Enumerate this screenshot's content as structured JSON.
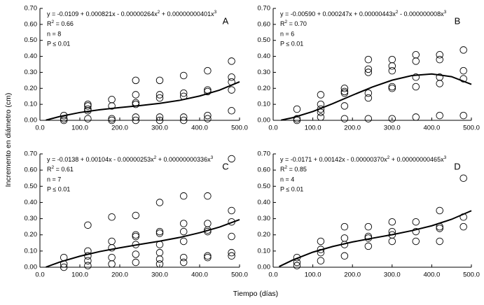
{
  "y_axis_label": "Incremento en diámetro (cm)",
  "x_axis_label": "Tiempo (días)",
  "chart_data": [
    {
      "type": "scatter",
      "letter": "A",
      "color": "#000000",
      "equation": [
        "y = -0.0109 + 0.000821x - 0.00000264x",
        "2",
        " + 0.00000000401x",
        "3"
      ],
      "r2": [
        "R",
        "2",
        " = 0.66"
      ],
      "n": "n = 8",
      "p": "P ≤ 0.01",
      "xlim": [
        0,
        500
      ],
      "ylim": [
        0,
        0.7
      ],
      "xticks": [
        {
          "value": 0,
          "label": "0.0"
        },
        {
          "value": 100,
          "label": "100.0"
        },
        {
          "value": 200,
          "label": "200.0"
        },
        {
          "value": 300,
          "label": "300.0"
        },
        {
          "value": 400,
          "label": "400.0"
        },
        {
          "value": 500,
          "label": "500.0"
        }
      ],
      "yticks": [
        {
          "value": 0,
          "label": "0.00"
        },
        {
          "value": 0.1,
          "label": "0.10"
        },
        {
          "value": 0.2,
          "label": "0.20"
        },
        {
          "value": 0.3,
          "label": "0.30"
        },
        {
          "value": 0.4,
          "label": "0.40"
        },
        {
          "value": 0.5,
          "label": "0.50"
        },
        {
          "value": 0.6,
          "label": "0.60"
        },
        {
          "value": 0.7,
          "label": "0.70"
        }
      ],
      "points": {
        "x": [
          60,
          60,
          60,
          120,
          120,
          120,
          120,
          120,
          180,
          180,
          180,
          180,
          240,
          240,
          240,
          240,
          240,
          240,
          300,
          300,
          300,
          300,
          300,
          360,
          360,
          360,
          360,
          360,
          420,
          420,
          420,
          420,
          420,
          480,
          480,
          480,
          480,
          480
        ],
        "values": [
          0.03,
          0.01,
          0.0,
          0.1,
          0.09,
          0.07,
          0.06,
          0.01,
          0.13,
          0.09,
          0.01,
          0.0,
          0.25,
          0.16,
          0.11,
          0.1,
          0.02,
          0.0,
          0.25,
          0.16,
          0.14,
          0.02,
          0.0,
          0.28,
          0.17,
          0.15,
          0.02,
          0.0,
          0.31,
          0.19,
          0.18,
          0.03,
          0.01,
          0.37,
          0.27,
          0.24,
          0.19,
          0.06
        ]
      },
      "fit": {
        "x": [
          15,
          50,
          100,
          150,
          200,
          250,
          300,
          350,
          400,
          450,
          500
        ],
        "values": [
          0.001,
          0.024,
          0.049,
          0.066,
          0.08,
          0.092,
          0.106,
          0.125,
          0.152,
          0.189,
          0.241
        ]
      }
    },
    {
      "type": "scatter",
      "letter": "B",
      "color": "#000000",
      "equation": [
        "y = -0.00590 + 0.000247x + 0.00000443x",
        "2",
        " - 0.000000008x",
        "3"
      ],
      "r2": [
        "R",
        "2",
        " = 0.70"
      ],
      "n": "n = 6",
      "p": "P ≤ 0.01",
      "xlim": [
        0,
        500
      ],
      "ylim": [
        0,
        0.7
      ],
      "xticks": [
        {
          "value": 0,
          "label": "0.0"
        },
        {
          "value": 100,
          "label": "100.0"
        },
        {
          "value": 200,
          "label": "200.0"
        },
        {
          "value": 300,
          "label": "300.0"
        },
        {
          "value": 400,
          "label": "400.0"
        },
        {
          "value": 500,
          "label": "500.0"
        }
      ],
      "yticks": [
        {
          "value": 0,
          "label": "0.00"
        },
        {
          "value": 0.1,
          "label": "0.10"
        },
        {
          "value": 0.2,
          "label": "0.20"
        },
        {
          "value": 0.3,
          "label": "0.30"
        },
        {
          "value": 0.4,
          "label": "0.40"
        },
        {
          "value": 0.5,
          "label": "0.50"
        },
        {
          "value": 0.6,
          "label": "0.60"
        },
        {
          "value": 0.7,
          "label": "0.70"
        }
      ],
      "points": {
        "x": [
          60,
          60,
          60,
          120,
          120,
          120,
          120,
          120,
          180,
          180,
          180,
          180,
          180,
          240,
          240,
          240,
          240,
          240,
          240,
          300,
          300,
          300,
          300,
          300,
          300,
          360,
          360,
          360,
          360,
          360,
          420,
          420,
          420,
          420,
          420,
          480,
          480,
          480,
          480
        ],
        "values": [
          0.07,
          0.01,
          0.0,
          0.16,
          0.1,
          0.07,
          0.05,
          0.02,
          0.2,
          0.18,
          0.17,
          0.09,
          0.01,
          0.38,
          0.32,
          0.3,
          0.17,
          0.14,
          0.01,
          0.38,
          0.34,
          0.31,
          0.21,
          0.2,
          0.01,
          0.41,
          0.37,
          0.27,
          0.21,
          0.02,
          0.41,
          0.38,
          0.27,
          0.23,
          0.03,
          0.44,
          0.31,
          0.26,
          0.03
        ]
      },
      "fit": {
        "x": [
          20,
          50,
          100,
          150,
          200,
          250,
          300,
          350,
          400,
          450,
          500
        ],
        "values": [
          0.001,
          0.017,
          0.055,
          0.104,
          0.157,
          0.208,
          0.251,
          0.28,
          0.29,
          0.273,
          0.225
        ]
      }
    },
    {
      "type": "scatter",
      "letter": "C",
      "color": "#000000",
      "equation": [
        "y = -0.0138 + 0.00104x - 0.00000253x",
        "2",
        " + 0.00000000336x",
        "3"
      ],
      "r2": [
        "R",
        "2",
        " = 0.61"
      ],
      "n": "n = 7",
      "p": "P ≤ 0.01",
      "xlim": [
        0,
        500
      ],
      "ylim": [
        0,
        0.7
      ],
      "xticks": [
        {
          "value": 0,
          "label": "0.0"
        },
        {
          "value": 100,
          "label": "100.0"
        },
        {
          "value": 200,
          "label": "200.0"
        },
        {
          "value": 300,
          "label": "300.0"
        },
        {
          "value": 400,
          "label": "400.0"
        },
        {
          "value": 500,
          "label": "500.0"
        }
      ],
      "yticks": [
        {
          "value": 0,
          "label": "0.00"
        },
        {
          "value": 0.1,
          "label": "0.10"
        },
        {
          "value": 0.2,
          "label": "0.20"
        },
        {
          "value": 0.3,
          "label": "0.30"
        },
        {
          "value": 0.4,
          "label": "0.40"
        },
        {
          "value": 0.5,
          "label": "0.50"
        },
        {
          "value": 0.6,
          "label": "0.60"
        },
        {
          "value": 0.7,
          "label": "0.70"
        }
      ],
      "points": {
        "x": [
          60,
          60,
          60,
          120,
          120,
          120,
          120,
          120,
          180,
          180,
          180,
          180,
          180,
          240,
          240,
          240,
          240,
          240,
          240,
          300,
          300,
          300,
          300,
          300,
          300,
          300,
          360,
          360,
          360,
          360,
          360,
          360,
          420,
          420,
          420,
          420,
          420,
          420,
          480,
          480,
          480,
          480,
          480,
          480
        ],
        "values": [
          0.06,
          0.02,
          0.0,
          0.26,
          0.1,
          0.07,
          0.04,
          0.01,
          0.31,
          0.16,
          0.12,
          0.06,
          0.02,
          0.32,
          0.2,
          0.19,
          0.14,
          0.08,
          0.03,
          0.4,
          0.22,
          0.21,
          0.14,
          0.09,
          0.05,
          0.02,
          0.44,
          0.27,
          0.22,
          0.16,
          0.06,
          0.03,
          0.44,
          0.27,
          0.23,
          0.22,
          0.07,
          0.06,
          0.67,
          0.35,
          0.28,
          0.19,
          0.09,
          0.07
        ]
      },
      "fit": {
        "x": [
          15,
          50,
          100,
          150,
          200,
          250,
          300,
          350,
          400,
          450,
          500
        ],
        "values": [
          0.001,
          0.032,
          0.068,
          0.097,
          0.12,
          0.141,
          0.161,
          0.184,
          0.213,
          0.248,
          0.294
        ]
      }
    },
    {
      "type": "scatter",
      "letter": "D",
      "color": "#000000",
      "equation": [
        "y = -0.0171 + 0.00142x - 0.00000370x",
        "2",
        " + 0.00000000465x",
        "3"
      ],
      "r2": [
        "R",
        "2",
        " = 0.85"
      ],
      "n": "n = 4",
      "p": "P ≤ 0.01",
      "xlim": [
        0,
        500
      ],
      "ylim": [
        0,
        0.7
      ],
      "xticks": [
        {
          "value": 0,
          "label": "0.0"
        },
        {
          "value": 100,
          "label": "100.0"
        },
        {
          "value": 200,
          "label": "200.0"
        },
        {
          "value": 300,
          "label": "300.0"
        },
        {
          "value": 400,
          "label": "400.0"
        },
        {
          "value": 500,
          "label": "500.0"
        }
      ],
      "yticks": [
        {
          "value": 0,
          "label": "0.00"
        },
        {
          "value": 0.1,
          "label": "0.10"
        },
        {
          "value": 0.2,
          "label": "0.20"
        },
        {
          "value": 0.3,
          "label": "0.30"
        },
        {
          "value": 0.4,
          "label": "0.40"
        },
        {
          "value": 0.5,
          "label": "0.50"
        },
        {
          "value": 0.6,
          "label": "0.60"
        },
        {
          "value": 0.7,
          "label": "0.70"
        }
      ],
      "points": {
        "x": [
          60,
          60,
          60,
          120,
          120,
          120,
          120,
          180,
          180,
          180,
          180,
          240,
          240,
          240,
          240,
          300,
          300,
          300,
          300,
          360,
          360,
          360,
          420,
          420,
          420,
          420,
          480,
          480,
          480
        ],
        "values": [
          0.06,
          0.03,
          0.01,
          0.16,
          0.11,
          0.09,
          0.04,
          0.25,
          0.18,
          0.14,
          0.07,
          0.25,
          0.19,
          0.18,
          0.13,
          0.28,
          0.22,
          0.2,
          0.16,
          0.28,
          0.22,
          0.16,
          0.35,
          0.25,
          0.24,
          0.16,
          0.55,
          0.31,
          0.25
        ]
      },
      "fit": {
        "x": [
          15,
          50,
          100,
          150,
          200,
          250,
          300,
          350,
          400,
          450,
          500
        ],
        "values": [
          0.004,
          0.045,
          0.093,
          0.128,
          0.156,
          0.179,
          0.201,
          0.226,
          0.256,
          0.296,
          0.349
        ]
      }
    }
  ]
}
